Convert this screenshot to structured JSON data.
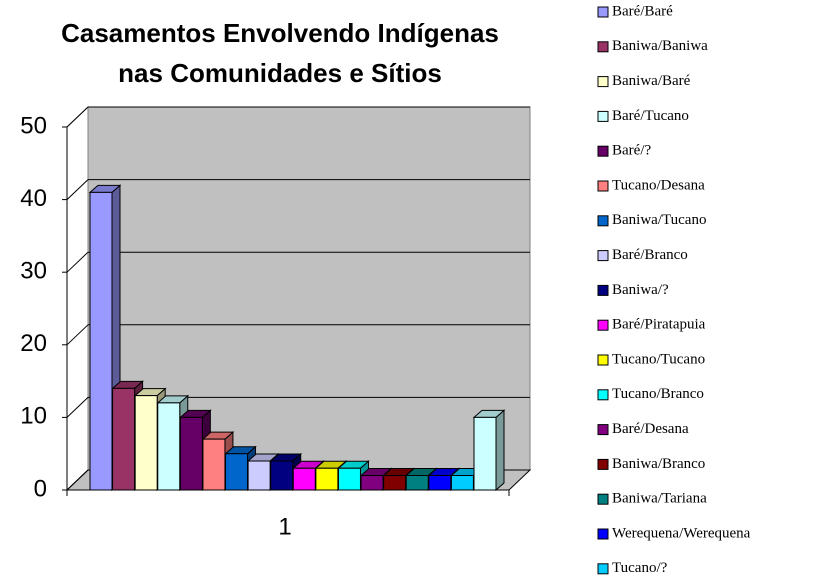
{
  "chart_data": {
    "type": "bar3d",
    "title": [
      "Casamentos Envolvendo Indígenas",
      "nas Comunidades e Sítios"
    ],
    "categories": [
      "1"
    ],
    "ylim": [
      0,
      50
    ],
    "yticks": [
      0,
      10,
      20,
      30,
      40,
      50
    ],
    "grid": true,
    "legend": "right",
    "series": [
      {
        "name": "Baré/Baré",
        "color": "#9999FF",
        "values": [
          41
        ]
      },
      {
        "name": "Baniwa/Baniwa",
        "color": "#993366",
        "values": [
          14
        ]
      },
      {
        "name": "Baniwa/Baré",
        "color": "#FFFFCC",
        "values": [
          13
        ]
      },
      {
        "name": "Baré/Tucano",
        "color": "#CCFFFF",
        "values": [
          12
        ]
      },
      {
        "name": "Baré/?",
        "color": "#660066",
        "values": [
          10
        ]
      },
      {
        "name": "Tucano/Desana",
        "color": "#FF8080",
        "values": [
          7
        ]
      },
      {
        "name": "Baniwa/Tucano",
        "color": "#0066CC",
        "values": [
          5
        ]
      },
      {
        "name": "Baré/Branco",
        "color": "#CCCCFF",
        "values": [
          4
        ]
      },
      {
        "name": "Baniwa/?",
        "color": "#000080",
        "values": [
          4
        ]
      },
      {
        "name": "Baré/Piratapuia",
        "color": "#FF00FF",
        "values": [
          3
        ]
      },
      {
        "name": "Tucano/Tucano",
        "color": "#FFFF00",
        "values": [
          3
        ]
      },
      {
        "name": "Tucano/Branco",
        "color": "#00FFFF",
        "values": [
          3
        ]
      },
      {
        "name": "Baré/Desana",
        "color": "#800080",
        "values": [
          2
        ]
      },
      {
        "name": "Baniwa/Branco",
        "color": "#800000",
        "values": [
          2
        ]
      },
      {
        "name": "Baniwa/Tariana",
        "color": "#008080",
        "values": [
          2
        ]
      },
      {
        "name": "Werequena/Werequena",
        "color": "#0000FF",
        "values": [
          2
        ]
      },
      {
        "name": "Tucano/?",
        "color": "#00CCFF",
        "values": [
          2
        ]
      },
      {
        "name": null,
        "color": "#CCFFFF",
        "values": [
          10
        ]
      }
    ]
  }
}
